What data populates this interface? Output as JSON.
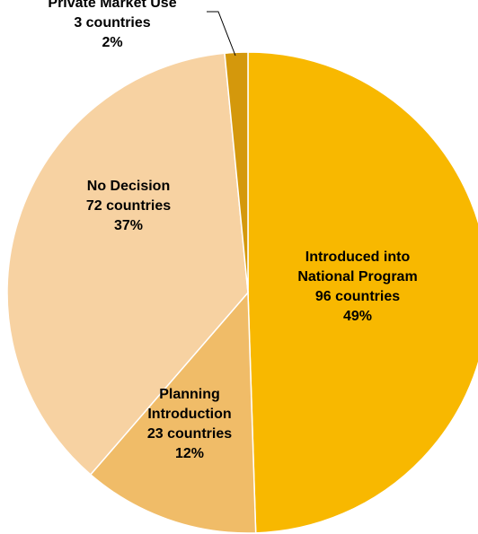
{
  "chart_data": {
    "type": "pie",
    "title": "",
    "start_angle_deg": 0,
    "direction": "clockwise",
    "slices": [
      {
        "name": "Introduced into National Program",
        "countries": 96,
        "percent": 49,
        "color": "#F8B800",
        "label_lines": [
          "Introduced into",
          "National Program",
          "96 countries",
          "49%"
        ]
      },
      {
        "name": "Planning Introduction",
        "countries": 23,
        "percent": 12,
        "color": "#F0BC68",
        "label_lines": [
          "Planning",
          "Introduction",
          "23 countries",
          "12%"
        ]
      },
      {
        "name": "No Decision",
        "countries": 72,
        "percent": 37,
        "color": "#F7D2A2",
        "label_lines": [
          "No Decision",
          "72 countries",
          "37%"
        ]
      },
      {
        "name": "Private Market Use",
        "countries": 3,
        "percent": 2,
        "color": "#D4980C",
        "label_lines": [
          "Private Market Use",
          "3 countries",
          "2%"
        ]
      }
    ]
  }
}
